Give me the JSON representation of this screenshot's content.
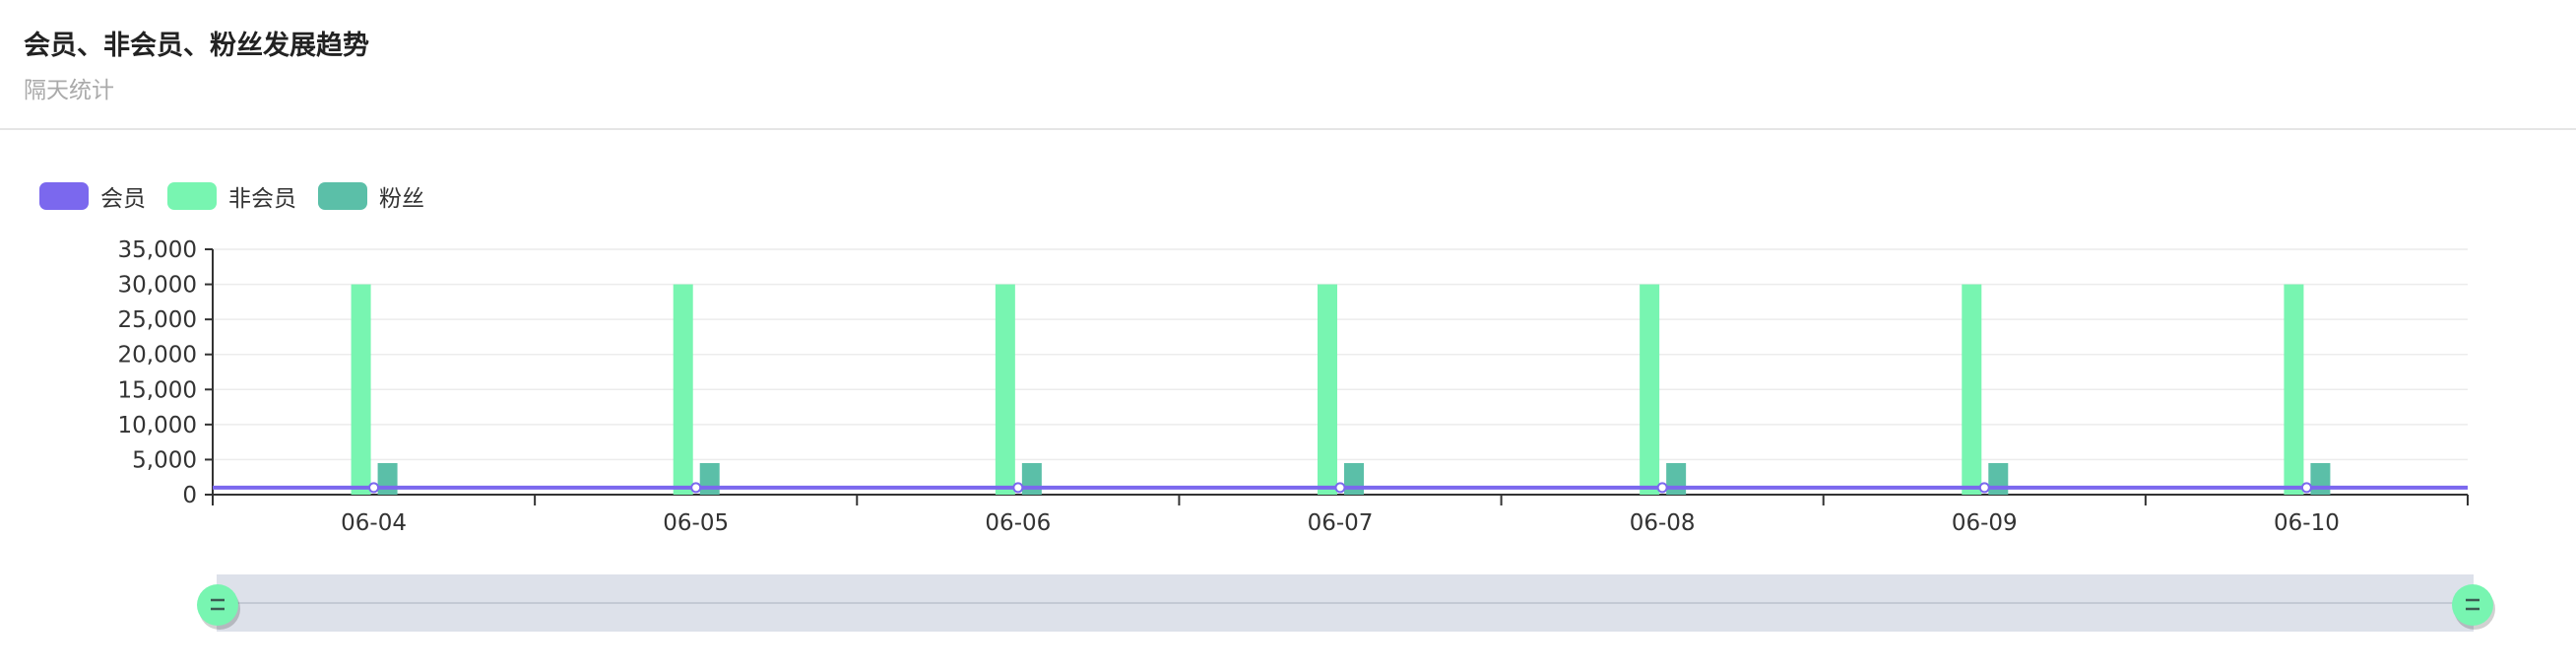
{
  "header": {
    "title": "会员、非会员、粉丝发展趋势",
    "subtitle": "隔天统计"
  },
  "colors": {
    "member": "#7b68ee",
    "non_member": "#78f5b1",
    "fans": "#5bbfa8",
    "slider_track": "#dde1ea",
    "slider_handle": "#78f5b1"
  },
  "chart_data": {
    "type": "bar",
    "categories": [
      "06-04",
      "06-05",
      "06-06",
      "06-07",
      "06-08",
      "06-09",
      "06-10"
    ],
    "series": [
      {
        "name": "会员",
        "type": "line",
        "values": [
          1000,
          1000,
          1000,
          1000,
          1000,
          1000,
          1000
        ]
      },
      {
        "name": "非会员",
        "type": "bar",
        "values": [
          30000,
          30000,
          30000,
          30000,
          30000,
          30000,
          30000
        ]
      },
      {
        "name": "粉丝",
        "type": "bar",
        "values": [
          4500,
          4500,
          4500,
          4500,
          4500,
          4500,
          4500
        ]
      }
    ],
    "y_ticks": [
      "0",
      "5,000",
      "10,000",
      "15,000",
      "20,000",
      "25,000",
      "30,000",
      "35,000"
    ],
    "ylim": [
      0,
      35000
    ],
    "grid": true,
    "legend_position": "top-left",
    "data_zoom": {
      "start": 0,
      "end": 100
    }
  }
}
